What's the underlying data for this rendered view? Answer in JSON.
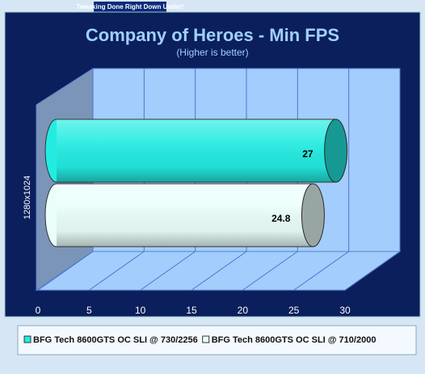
{
  "header": {
    "banner": "Tweaking Done Right Down Under!"
  },
  "chart_data": {
    "type": "bar3d",
    "title": "Company of Heroes - Min FPS",
    "subtitle": "(Higher is better)",
    "categories": [
      "1280x1024"
    ],
    "series": [
      {
        "name": "BFG Tech 8600GTS OC SLI @ 730/2256",
        "color": "#22ece2",
        "values": [
          27
        ]
      },
      {
        "name": "BFG Tech 8600GTS OC SLI @ 710/2000",
        "color": "#eafffb",
        "values": [
          24.8
        ]
      }
    ],
    "xlim": [
      0,
      30
    ],
    "xticks": [
      0,
      5,
      10,
      15,
      20,
      25,
      30
    ],
    "grid": true,
    "legend": "bottom"
  }
}
